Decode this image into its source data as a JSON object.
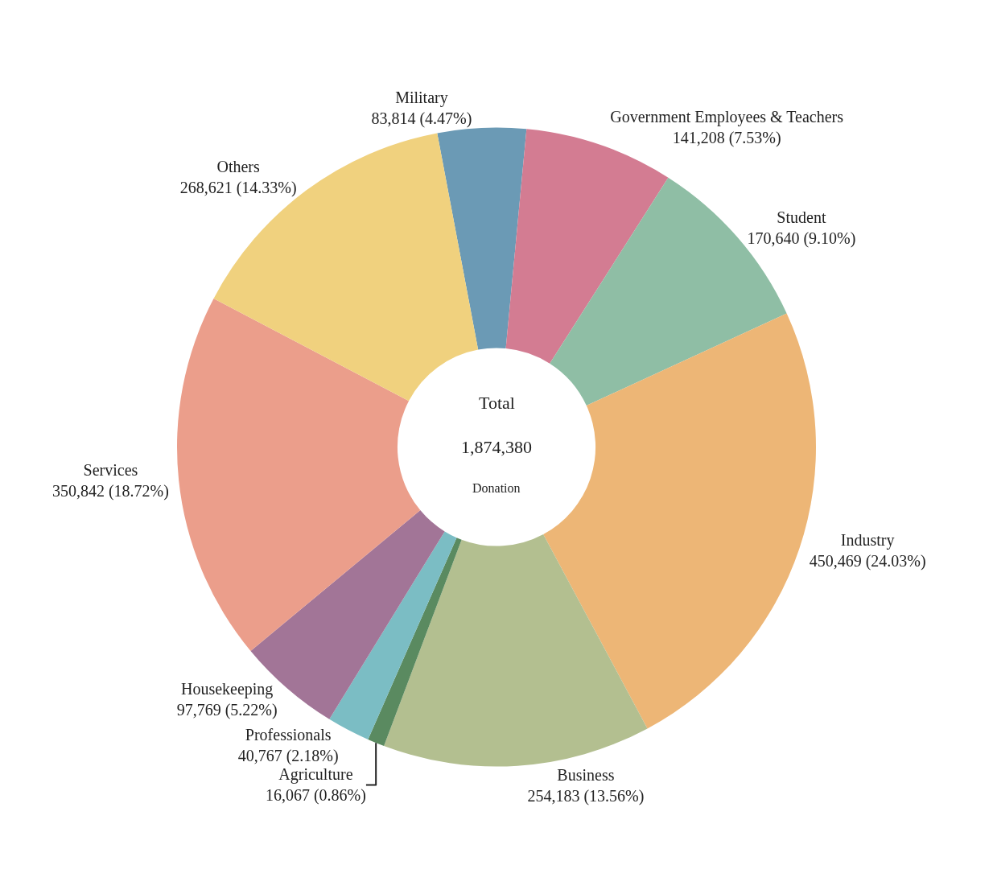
{
  "chart_data": {
    "type": "donut",
    "categories": [
      "Military",
      "Government Employees & Teachers",
      "Student",
      "Industry",
      "Business",
      "Agriculture",
      "Professionals",
      "Housekeeping",
      "Services",
      "Others"
    ],
    "values": [
      83814,
      141208,
      170640,
      450469,
      254183,
      16067,
      40767,
      97769,
      350842,
      268621
    ],
    "value_labels": [
      "83,814 (4.47%)",
      "141,208 (7.53%)",
      "170,640 (9.10%)",
      "450,469 (24.03%)",
      "254,183 (13.56%)",
      "16,067 (0.86%)",
      "40,767 (2.18%)",
      "97,769 (5.22%)",
      "350,842 (18.72%)",
      "268,621 (14.33%)"
    ],
    "colors": [
      "#6b9ab5",
      "#d37c92",
      "#8fbea5",
      "#edb676",
      "#b3bf90",
      "#5a8a60",
      "#7bbdc4",
      "#a27597",
      "#eb9e8b",
      "#f0d17e"
    ],
    "annotations": [
      "Total",
      "1,874,380",
      "Donation"
    ],
    "legend": false
  }
}
